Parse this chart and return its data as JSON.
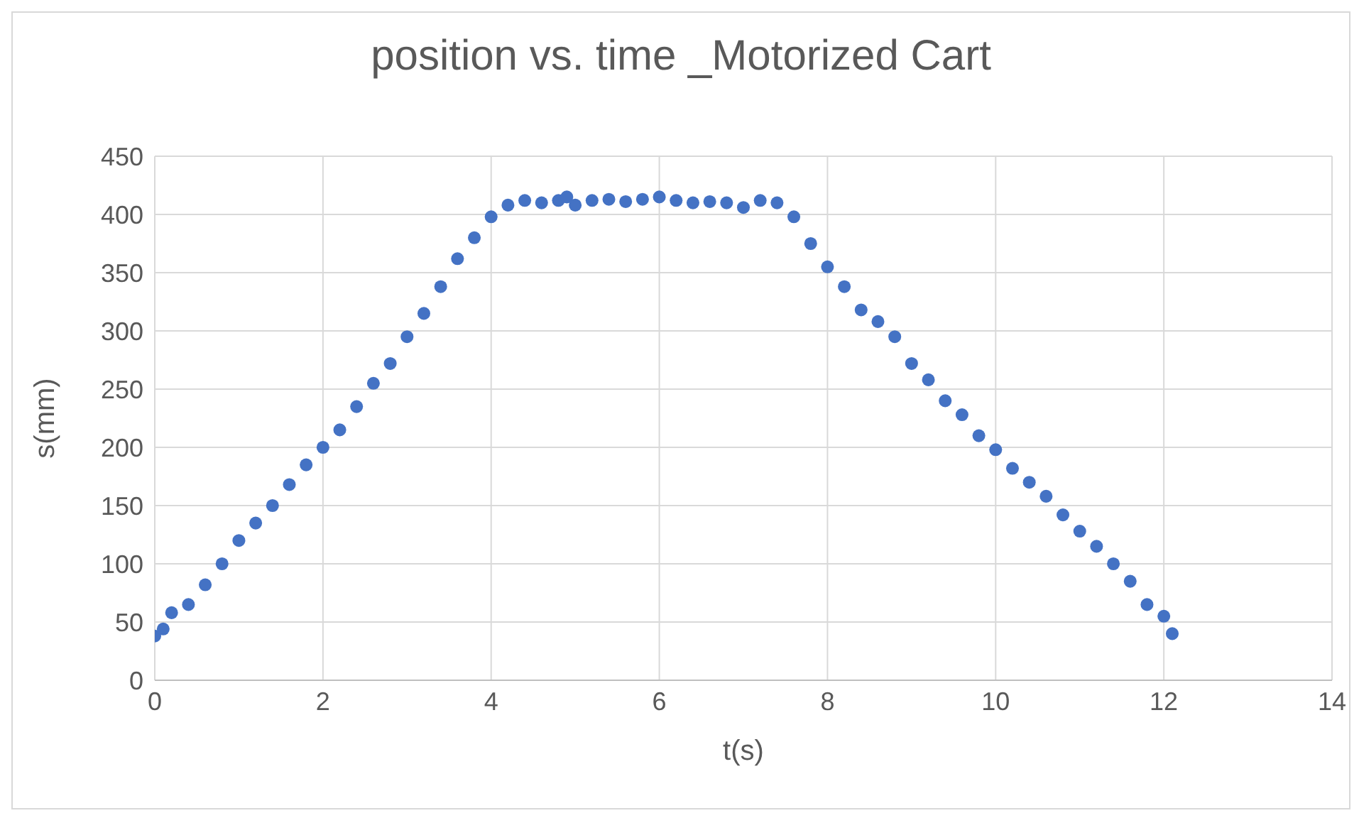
{
  "chart_data": {
    "type": "scatter",
    "title": "position vs. time _Motorized Cart",
    "xlabel": "t(s)",
    "ylabel": "s(mm)",
    "xlim": [
      0,
      14
    ],
    "xticks": [
      0,
      2,
      4,
      6,
      8,
      10,
      12,
      14
    ],
    "ylim": [
      0,
      450
    ],
    "yticks": [
      0,
      50,
      100,
      150,
      200,
      250,
      300,
      350,
      400,
      450
    ],
    "grid": true,
    "marker": "circle",
    "series": [
      {
        "color": "#4472c4",
        "x": [
          0,
          0.1,
          0.2,
          0.4,
          0.6,
          0.8,
          1.0,
          1.2,
          1.4,
          1.6,
          1.8,
          2.0,
          2.2,
          2.4,
          2.6,
          2.8,
          3.0,
          3.2,
          3.4,
          3.6,
          3.8,
          4.0,
          4.2,
          4.4,
          4.6,
          4.8,
          4.9,
          5.0,
          5.2,
          5.4,
          5.6,
          5.8,
          6.0,
          6.2,
          6.4,
          6.6,
          6.8,
          7.0,
          7.2,
          7.4,
          7.6,
          7.8,
          8.0,
          8.2,
          8.4,
          8.6,
          8.8,
          9.0,
          9.2,
          9.4,
          9.6,
          9.8,
          10.0,
          10.2,
          10.4,
          10.6,
          10.8,
          11.0,
          11.2,
          11.4,
          11.6,
          11.8,
          12.0,
          12.1
        ],
        "values": [
          38,
          44,
          58,
          65,
          82,
          100,
          120,
          135,
          150,
          168,
          185,
          200,
          215,
          235,
          255,
          272,
          295,
          315,
          338,
          362,
          380,
          398,
          408,
          412,
          410,
          412,
          415,
          408,
          412,
          413,
          411,
          413,
          415,
          412,
          410,
          411,
          410,
          406,
          412,
          410,
          398,
          375,
          355,
          338,
          318,
          308,
          295,
          272,
          258,
          240,
          228,
          210,
          198,
          182,
          170,
          158,
          142,
          128,
          115,
          100,
          85,
          65,
          55,
          40
        ]
      }
    ]
  }
}
